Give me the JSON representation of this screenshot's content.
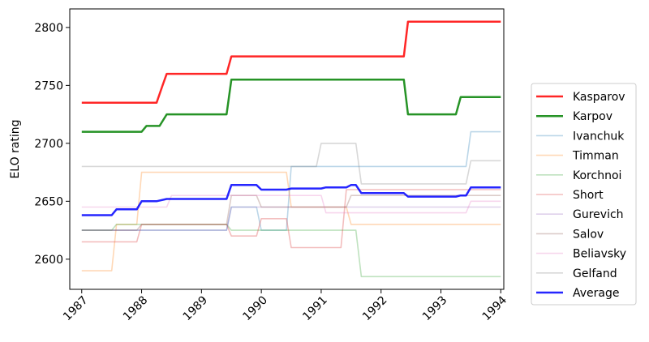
{
  "chart_data": {
    "type": "line",
    "title": "",
    "xlabel": "",
    "ylabel": "ELO rating",
    "xlim": [
      1986.8,
      1994.05
    ],
    "ylim": [
      2574,
      2816
    ],
    "xticks": [
      1987,
      1988,
      1989,
      1990,
      1991,
      1992,
      1993,
      1994
    ],
    "xtick_labels": [
      "1987",
      "1988",
      "1989",
      "1990",
      "1991",
      "1992",
      "1993",
      "1994"
    ],
    "yticks": [
      2600,
      2650,
      2700,
      2750,
      2800
    ],
    "ytick_labels": [
      "2600",
      "2650",
      "2700",
      "2750",
      "2800"
    ],
    "legend": "right, outside plot",
    "grid": false,
    "series": [
      {
        "name": "Kasparov",
        "color": "#ff0000",
        "alpha": 0.85,
        "width": 2.5,
        "x": [
          1987.0,
          1988.25,
          1988.35,
          1988.42,
          1989.42,
          1989.5,
          1992.38,
          1992.45,
          1994.0
        ],
        "y": [
          2735,
          2735,
          2750,
          2760,
          2760,
          2775,
          2775,
          2805,
          2805
        ]
      },
      {
        "name": "Karpov",
        "color": "#008000",
        "alpha": 0.85,
        "width": 2.5,
        "x": [
          1987.0,
          1988.0,
          1988.08,
          1988.3,
          1988.42,
          1989.42,
          1989.5,
          1992.38,
          1992.45,
          1993.25,
          1993.33,
          1994.0
        ],
        "y": [
          2710,
          2710,
          2715,
          2715,
          2725,
          2725,
          2755,
          2755,
          2725,
          2725,
          2740,
          2740
        ]
      },
      {
        "name": "Ivanchuk",
        "color": "#1f77b4",
        "alpha": 0.3,
        "width": 1.6,
        "x": [
          1987.0,
          1989.42,
          1989.5,
          1989.92,
          1990.0,
          1990.42,
          1990.5,
          1993.42,
          1993.5,
          1994.0
        ],
        "y": [
          2625,
          2625,
          2645,
          2645,
          2625,
          2625,
          2680,
          2680,
          2710,
          2710
        ]
      },
      {
        "name": "Timman",
        "color": "#ff7f0e",
        "alpha": 0.3,
        "width": 1.6,
        "x": [
          1987.0,
          1987.5,
          1987.58,
          1987.92,
          1988.0,
          1990.42,
          1990.5,
          1991.42,
          1991.5,
          1994.0
        ],
        "y": [
          2590,
          2590,
          2630,
          2630,
          2675,
          2675,
          2645,
          2645,
          2630,
          2630
        ]
      },
      {
        "name": "Korchnoi",
        "color": "#2ca02c",
        "alpha": 0.3,
        "width": 1.6,
        "x": [
          1987.0,
          1987.5,
          1987.58,
          1989.42,
          1989.5,
          1991.58,
          1991.67,
          1994.0
        ],
        "y": [
          2625,
          2625,
          2630,
          2630,
          2625,
          2625,
          2585,
          2585
        ]
      },
      {
        "name": "Short",
        "color": "#d62728",
        "alpha": 0.3,
        "width": 1.6,
        "x": [
          1987.0,
          1987.92,
          1988.0,
          1989.42,
          1989.5,
          1989.92,
          1990.0,
          1990.42,
          1990.5,
          1991.33,
          1991.42,
          1994.0
        ],
        "y": [
          2615,
          2615,
          2630,
          2630,
          2620,
          2620,
          2635,
          2635,
          2610,
          2610,
          2660,
          2660
        ]
      },
      {
        "name": "Gurevich",
        "color": "#9467bd",
        "alpha": 0.3,
        "width": 1.6,
        "x": [
          1987.0,
          1989.42,
          1989.5,
          1994.0
        ],
        "y": [
          2625,
          2625,
          2645,
          2645
        ]
      },
      {
        "name": "Salov",
        "color": "#8c564b",
        "alpha": 0.3,
        "width": 1.6,
        "x": [
          1987.0,
          1987.92,
          1988.0,
          1989.42,
          1989.5,
          1989.92,
          1990.0,
          1991.42,
          1991.5,
          1994.0
        ],
        "y": [
          2625,
          2625,
          2630,
          2630,
          2655,
          2655,
          2645,
          2645,
          2655,
          2655
        ]
      },
      {
        "name": "Beliavsky",
        "color": "#e377c2",
        "alpha": 0.3,
        "width": 1.6,
        "x": [
          1987.0,
          1988.42,
          1988.5,
          1991.0,
          1991.08,
          1993.42,
          1993.5,
          1994.0
        ],
        "y": [
          2645,
          2645,
          2655,
          2655,
          2640,
          2640,
          2650,
          2650
        ]
      },
      {
        "name": "Gelfand",
        "color": "#7f7f7f",
        "alpha": 0.3,
        "width": 1.6,
        "x": [
          1987.0,
          1990.42,
          1990.5,
          1990.92,
          1991.0,
          1991.58,
          1991.67,
          1993.42,
          1993.5,
          1994.0
        ],
        "y": [
          2680,
          2680,
          2680,
          2680,
          2700,
          2700,
          2665,
          2665,
          2685,
          2685
        ]
      },
      {
        "name": "Average",
        "color": "#0000ff",
        "alpha": 0.85,
        "width": 2.5,
        "x": [
          1987.0,
          1987.5,
          1987.58,
          1987.92,
          1988.0,
          1988.25,
          1988.42,
          1989.42,
          1989.5,
          1989.92,
          1990.0,
          1990.42,
          1990.5,
          1991.0,
          1991.08,
          1991.42,
          1991.5,
          1991.58,
          1991.67,
          1992.38,
          1992.45,
          1993.25,
          1993.33,
          1993.42,
          1993.5,
          1994.0
        ],
        "y": [
          2638,
          2638,
          2643,
          2643,
          2650,
          2650,
          2652,
          2652,
          2664,
          2664,
          2660,
          2660,
          2661,
          2661,
          2662,
          2662,
          2664,
          2664,
          2657,
          2657,
          2654,
          2654,
          2655,
          2655,
          2662,
          2662
        ]
      }
    ]
  }
}
